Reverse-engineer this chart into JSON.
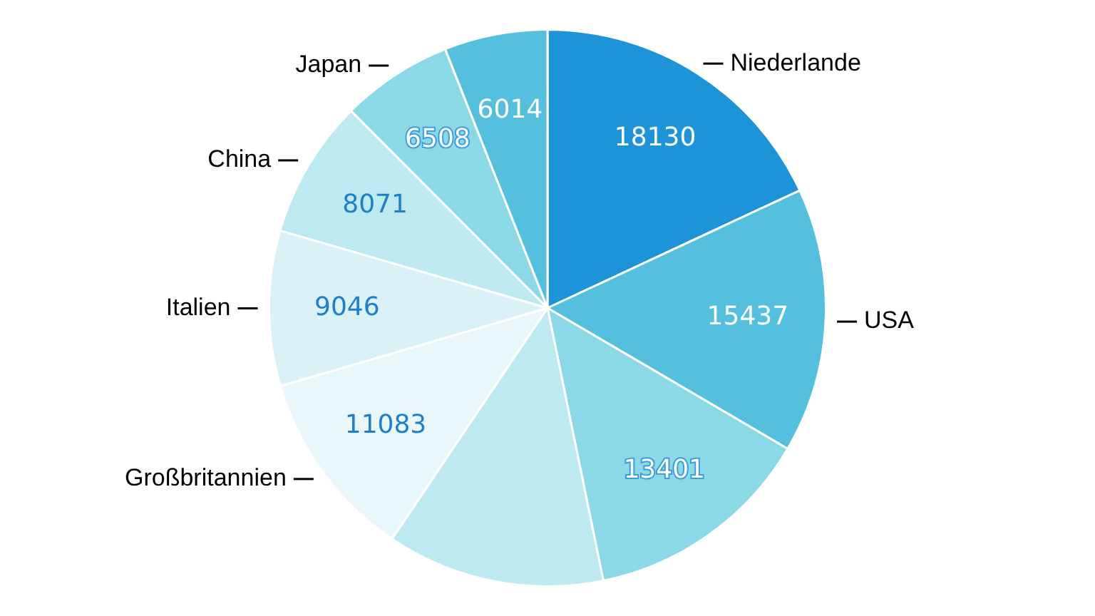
{
  "chart_data": {
    "type": "pie",
    "categories": [
      "Niederlande",
      "USA",
      null,
      null,
      "Großbritannien",
      "Italien",
      "China",
      "Japan",
      null
    ],
    "values": [
      18130,
      15437,
      13401,
      12700,
      11083,
      9046,
      8071,
      6508,
      6014
    ],
    "value_labels": [
      "18130",
      "15437",
      "13401",
      null,
      "11083",
      "9046",
      "8071",
      "6508",
      "6014"
    ],
    "colors": [
      "#1e94d8",
      "#55c0de",
      "#8bd8e7",
      "#bde9f0",
      "#eaf7fa",
      "#d9f1f7",
      "#bde9f0",
      "#8bd8e7",
      "#55c0de"
    ],
    "legend": false
  }
}
